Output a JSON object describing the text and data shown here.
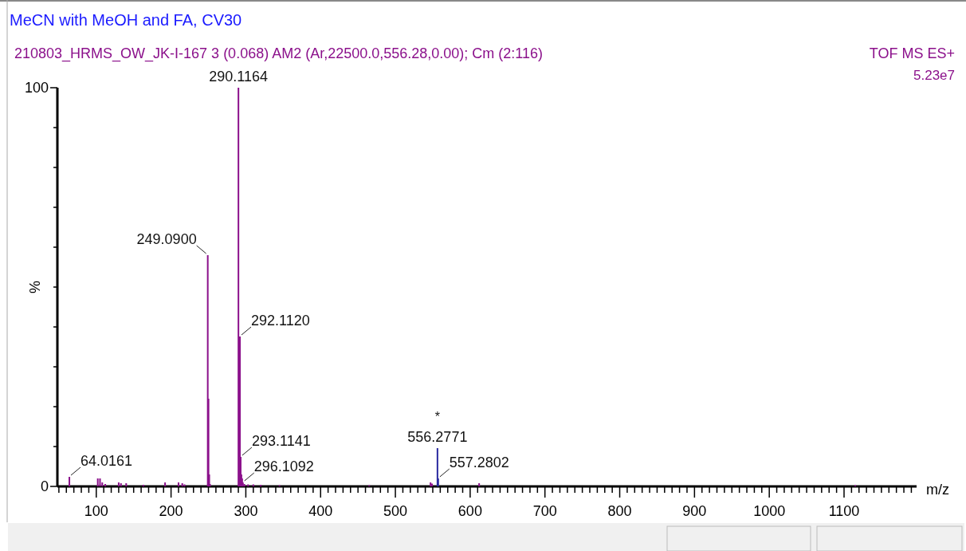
{
  "chart_data": {
    "type": "bar",
    "title": "MeCN with MeOH and FA, CV30",
    "subtitle": "210803_HRMS_OW_JK-I-167 3 (0.068) AM2 (Ar,22500.0,556.28,0.00); Cm (2:116)",
    "xlabel": "m/z",
    "ylabel": "%",
    "x": [
      64.0161,
      102,
      105,
      108,
      112,
      130,
      133,
      140,
      163,
      192,
      210,
      215,
      218,
      249.09,
      250.09,
      251.09,
      252.09,
      290.1164,
      292.112,
      293.1141,
      294.11,
      295.11,
      296.1092,
      298,
      303,
      310,
      320,
      345,
      465,
      547,
      549,
      556.2771,
      557.2802,
      612,
      1115
    ],
    "values": [
      2.4,
      2,
      2,
      1,
      0.6,
      1,
      0.8,
      0.8,
      0.4,
      1,
      1,
      0.8,
      0.5,
      58,
      22,
      3,
      0.6,
      100,
      37.6,
      7.4,
      3,
      2,
      1,
      0.6,
      0.5,
      0.5,
      0.4,
      0.3,
      0.3,
      1,
      0.7,
      9.6,
      2,
      0.8,
      0.3
    ],
    "colors": [
      "#8b108b",
      "#8b108b",
      "#8b108b",
      "#8b108b",
      "#8b108b",
      "#8b108b",
      "#8b108b",
      "#8b108b",
      "#8b108b",
      "#8b108b",
      "#8b108b",
      "#8b108b",
      "#8b108b",
      "#8b108b",
      "#8b108b",
      "#8b108b",
      "#8b108b",
      "#8b108b",
      "#8b108b",
      "#8b108b",
      "#8b108b",
      "#8b108b",
      "#8b108b",
      "#8b108b",
      "#8b108b",
      "#8b108b",
      "#8b108b",
      "#8b108b",
      "#8b108b",
      "#8b108b",
      "#8b108b",
      "#2a2aa0",
      "#2a2aa0",
      "#8b108b",
      "#8b108b"
    ],
    "xlim": [
      48,
      1197
    ],
    "ylim": [
      0,
      100
    ],
    "yticks": [
      0,
      {
        "value": 10,
        "label": null
      },
      {
        "value": 20,
        "label": null
      },
      {
        "value": 30,
        "label": null
      },
      {
        "value": 40,
        "label": null
      },
      {
        "value": 50,
        "label": null
      },
      {
        "value": 60,
        "label": null
      },
      {
        "value": 70,
        "label": null
      },
      {
        "value": 80,
        "label": null
      },
      {
        "value": 90,
        "label": null
      },
      100
    ],
    "xticks": [
      {
        "value": 50,
        "label": null
      },
      {
        "value": 60,
        "label": null
      },
      {
        "value": 70,
        "label": null
      },
      {
        "value": 80,
        "label": null
      },
      {
        "value": 90,
        "label": null
      },
      100,
      {
        "value": 110,
        "label": null
      },
      {
        "value": 120,
        "label": null
      },
      {
        "value": 130,
        "label": null
      },
      {
        "value": 140,
        "label": null
      },
      {
        "value": 150,
        "label": null
      },
      {
        "value": 160,
        "label": null
      },
      {
        "value": 170,
        "label": null
      },
      {
        "value": 180,
        "label": null
      },
      {
        "value": 190,
        "label": null
      },
      200,
      {
        "value": 210,
        "label": null
      },
      {
        "value": 220,
        "label": null
      },
      {
        "value": 230,
        "label": null
      },
      {
        "value": 240,
        "label": null
      },
      {
        "value": 250,
        "label": null
      },
      {
        "value": 260,
        "label": null
      },
      {
        "value": 270,
        "label": null
      },
      {
        "value": 280,
        "label": null
      },
      {
        "value": 290,
        "label": null
      },
      300,
      {
        "value": 310,
        "label": null
      },
      {
        "value": 320,
        "label": null
      },
      {
        "value": 330,
        "label": null
      },
      {
        "value": 340,
        "label": null
      },
      {
        "value": 350,
        "label": null
      },
      {
        "value": 360,
        "label": null
      },
      {
        "value": 370,
        "label": null
      },
      {
        "value": 380,
        "label": null
      },
      {
        "value": 390,
        "label": null
      },
      400,
      {
        "value": 410,
        "label": null
      },
      {
        "value": 420,
        "label": null
      },
      {
        "value": 430,
        "label": null
      },
      {
        "value": 440,
        "label": null
      },
      {
        "value": 450,
        "label": null
      },
      {
        "value": 460,
        "label": null
      },
      {
        "value": 470,
        "label": null
      },
      {
        "value": 480,
        "label": null
      },
      {
        "value": 490,
        "label": null
      },
      500,
      {
        "value": 510,
        "label": null
      },
      {
        "value": 520,
        "label": null
      },
      {
        "value": 530,
        "label": null
      },
      {
        "value": 540,
        "label": null
      },
      {
        "value": 550,
        "label": null
      },
      {
        "value": 560,
        "label": null
      },
      {
        "value": 570,
        "label": null
      },
      {
        "value": 580,
        "label": null
      },
      {
        "value": 590,
        "label": null
      },
      600,
      {
        "value": 610,
        "label": null
      },
      {
        "value": 620,
        "label": null
      },
      {
        "value": 630,
        "label": null
      },
      {
        "value": 640,
        "label": null
      },
      {
        "value": 650,
        "label": null
      },
      {
        "value": 660,
        "label": null
      },
      {
        "value": 670,
        "label": null
      },
      {
        "value": 680,
        "label": null
      },
      {
        "value": 690,
        "label": null
      },
      700,
      {
        "value": 710,
        "label": null
      },
      {
        "value": 720,
        "label": null
      },
      {
        "value": 730,
        "label": null
      },
      {
        "value": 740,
        "label": null
      },
      {
        "value": 750,
        "label": null
      },
      {
        "value": 760,
        "label": null
      },
      {
        "value": 770,
        "label": null
      },
      {
        "value": 780,
        "label": null
      },
      {
        "value": 790,
        "label": null
      },
      800,
      {
        "value": 810,
        "label": null
      },
      {
        "value": 820,
        "label": null
      },
      {
        "value": 830,
        "label": null
      },
      {
        "value": 840,
        "label": null
      },
      {
        "value": 850,
        "label": null
      },
      {
        "value": 860,
        "label": null
      },
      {
        "value": 870,
        "label": null
      },
      {
        "value": 880,
        "label": null
      },
      {
        "value": 890,
        "label": null
      },
      900,
      {
        "value": 910,
        "label": null
      },
      {
        "value": 920,
        "label": null
      },
      {
        "value": 930,
        "label": null
      },
      {
        "value": 940,
        "label": null
      },
      {
        "value": 950,
        "label": null
      },
      {
        "value": 960,
        "label": null
      },
      {
        "value": 970,
        "label": null
      },
      {
        "value": 980,
        "label": null
      },
      {
        "value": 990,
        "label": null
      },
      1000,
      {
        "value": 1010,
        "label": null
      },
      {
        "value": 1020,
        "label": null
      },
      {
        "value": 1030,
        "label": null
      },
      {
        "value": 1040,
        "label": null
      },
      {
        "value": 1050,
        "label": null
      },
      {
        "value": 1060,
        "label": null
      },
      {
        "value": 1070,
        "label": null
      },
      {
        "value": 1080,
        "label": null
      },
      {
        "value": 1090,
        "label": null
      },
      1100,
      {
        "value": 1110,
        "label": null
      },
      {
        "value": 1120,
        "label": null
      },
      {
        "value": 1130,
        "label": null
      },
      {
        "value": 1140,
        "label": null
      },
      {
        "value": 1150,
        "label": null
      },
      {
        "value": 1160,
        "label": null
      },
      {
        "value": 1170,
        "label": null
      },
      {
        "value": 1180,
        "label": null
      },
      {
        "value": 1190,
        "label": null
      }
    ],
    "annotations": [
      "TOF MS ES+",
      "5.23e7",
      {
        "text": "64.0161",
        "x": 64.0161,
        "y": 2.4
      },
      {
        "text": "249.0900",
        "x": 249.09,
        "y": 58
      },
      {
        "text": "290.1164",
        "x": 290.1164,
        "y": 100
      },
      {
        "text": "292.1120",
        "x": 292.112,
        "y": 37.6
      },
      {
        "text": "293.1141",
        "x": 293.1141,
        "y": 7.4
      },
      {
        "text": "296.1092",
        "x": 296.1092,
        "y": 1
      },
      {
        "text": "556.2771",
        "x": 556.2771,
        "y": 9.6
      },
      {
        "text": "*",
        "x": 556.2771,
        "y": 9.6
      },
      {
        "text": "557.2802",
        "x": 557.2802,
        "y": 2
      }
    ]
  }
}
